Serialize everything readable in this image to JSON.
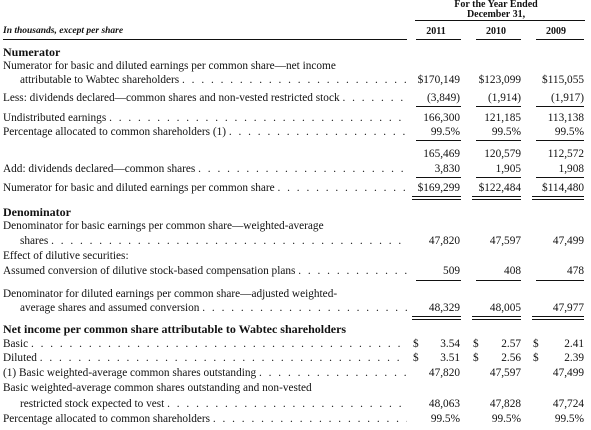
{
  "header": {
    "period_title": "For the Year Ended December 31,",
    "units_label": "In thousands, except per share",
    "years": [
      "2011",
      "2010",
      "2009"
    ]
  },
  "numerator": {
    "heading": "Numerator",
    "rows": [
      {
        "label_1": "Numerator for basic and diluted earnings per common share—net income",
        "label_2": "attributable to Wabtec shareholders",
        "values": [
          "$170,149",
          "$123,099",
          "$115,055"
        ]
      },
      {
        "label": "Less: dividends declared—common shares and non-vested restricted stock",
        "values": [
          "(3,849)",
          "(1,914)",
          "(1,917)"
        ]
      },
      {
        "label": "Undistributed earnings",
        "values": [
          "166,300",
          "121,185",
          "113,138"
        ]
      },
      {
        "label": "Percentage allocated to common shareholders (1)",
        "values": [
          "99.5%",
          "99.5%",
          "99.5%"
        ]
      },
      {
        "label": "",
        "values": [
          "165,469",
          "120,579",
          "112,572"
        ]
      },
      {
        "label": "Add: dividends declared—common shares",
        "values": [
          "3,830",
          "1,905",
          "1,908"
        ]
      },
      {
        "label": "Numerator for basic and diluted earnings per common share",
        "values": [
          "$169,299",
          "$122,484",
          "$114,480"
        ]
      }
    ]
  },
  "denominator": {
    "heading": "Denominator",
    "rows": [
      {
        "label_1": "Denominator for basic earnings per common share—weighted-average",
        "label_2": "shares",
        "values": [
          "47,820",
          "47,597",
          "47,499"
        ]
      },
      {
        "label": "Effect of dilutive securities:"
      },
      {
        "label": "Assumed conversion of dilutive stock-based compensation plans",
        "values": [
          "509",
          "408",
          "478"
        ]
      },
      {
        "label_1": "Denominator for diluted earnings per common share—adjusted weighted-",
        "label_2": "average shares and assumed conversion",
        "values": [
          "48,329",
          "48,005",
          "47,977"
        ]
      }
    ]
  },
  "net_income": {
    "heading": "Net income per common share attributable to Wabtec shareholders",
    "currency": "$",
    "rows": [
      {
        "label": "Basic",
        "values": [
          "3.54",
          "2.57",
          "2.41"
        ]
      },
      {
        "label": "Diluted",
        "values": [
          "3.51",
          "2.56",
          "2.39"
        ]
      },
      {
        "label": "(1) Basic weighted-average common shares outstanding",
        "values": [
          "47,820",
          "47,597",
          "47,499"
        ]
      },
      {
        "label_1": "Basic weighted-average common shares outstanding and non-vested",
        "label_2": "restricted stock expected to vest",
        "values": [
          "48,063",
          "47,828",
          "47,724"
        ]
      },
      {
        "label": "Percentage allocated to common shareholders",
        "values": [
          "99.5%",
          "99.5%",
          "99.5%"
        ]
      }
    ]
  }
}
